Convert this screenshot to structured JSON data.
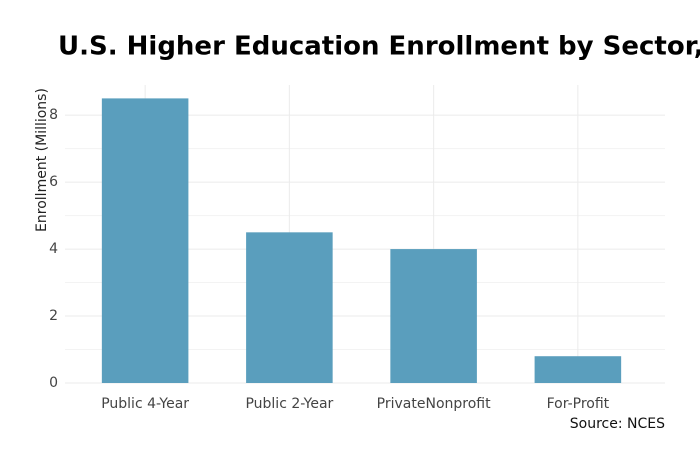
{
  "chart_data": {
    "type": "bar",
    "title": "U.S. Higher Education Enrollment by Sector,",
    "y_label": "Enrollment (Millions)",
    "source": "Source: NCES",
    "categories": [
      "Public 4-Year",
      "Public 2-Year",
      "PrivateNonprofit",
      "For-Profit"
    ],
    "values": [
      8.5,
      4.5,
      4.0,
      0.8
    ],
    "color": "#5a9ebd",
    "ylim": [
      0,
      8.9
    ],
    "yticks": [
      0,
      2,
      4,
      6,
      8
    ],
    "grid": true
  }
}
